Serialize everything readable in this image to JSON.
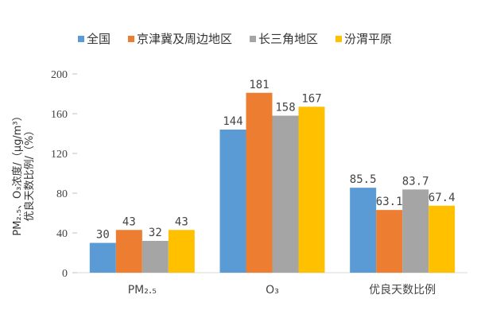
{
  "chart_data": {
    "type": "bar",
    "categories": [
      "PM₂.₅",
      "O₃",
      "优良天数比例"
    ],
    "series": [
      {
        "name": "全国",
        "color": "#5B9BD5",
        "values": [
          30,
          144,
          85.5
        ]
      },
      {
        "name": "京津冀及周边地区",
        "color": "#ED7D31",
        "values": [
          43,
          181,
          63.1
        ]
      },
      {
        "name": "长三角地区",
        "color": "#A5A5A5",
        "values": [
          32,
          158,
          83.7
        ]
      },
      {
        "name": "汾渭平原",
        "color": "#FFC000",
        "values": [
          43,
          167,
          67.4
        ]
      }
    ],
    "ylabel_line1": "PM₂.₅、O₃浓度/（μg/m³）",
    "ylabel_line2": "优良天数比例/（%）",
    "ylim": [
      0,
      200
    ],
    "yticks": [
      0,
      40,
      80,
      120,
      160,
      200
    ],
    "grid": false,
    "legend": "top"
  }
}
